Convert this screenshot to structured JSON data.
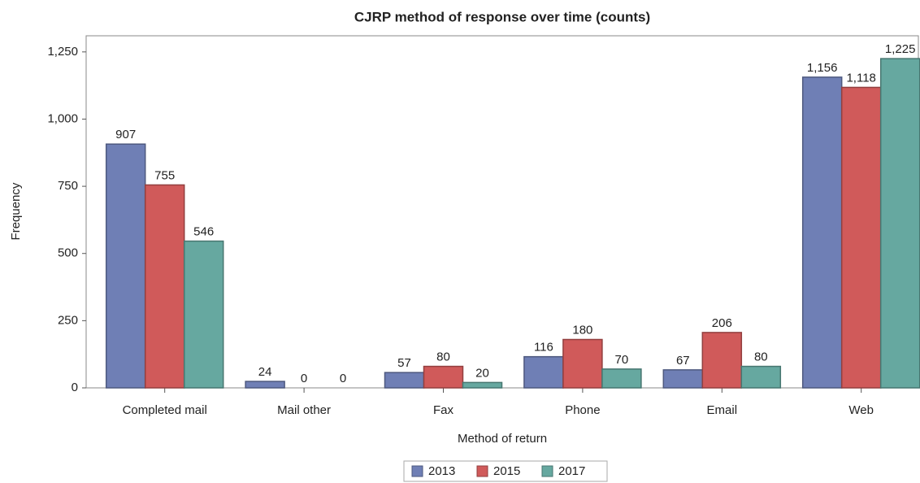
{
  "chart_data": {
    "type": "bar",
    "title": "CJRP method of response over time (counts)",
    "x_label": "Method of return",
    "y_label": "Frequency",
    "categories": [
      "Completed mail",
      "Mail other",
      "Fax",
      "Phone",
      "Email",
      "Web"
    ],
    "series": [
      {
        "name": "2013",
        "color": "#6f7fb5",
        "values": [
          907,
          24,
          57,
          116,
          67,
          1156
        ],
        "value_labels": [
          "907",
          "24",
          "57",
          "116",
          "67",
          "1,156"
        ]
      },
      {
        "name": "2015",
        "color": "#d05a5a",
        "values": [
          755,
          0,
          80,
          180,
          206,
          1118
        ],
        "value_labels": [
          "755",
          "0",
          "80",
          "180",
          "206",
          "1,118"
        ]
      },
      {
        "name": "2017",
        "color": "#66a8a0",
        "values": [
          546,
          0,
          20,
          70,
          80,
          1225
        ],
        "value_labels": [
          "546",
          "0",
          "20",
          "70",
          "80",
          "1,225"
        ]
      }
    ],
    "ylim": [
      0,
      1310
    ],
    "yticks": [
      0,
      250,
      500,
      750,
      {
        "value": 1000,
        "label": "1,000"
      },
      {
        "value": 1250,
        "label": "1,250"
      }
    ],
    "grid": false,
    "legend": "bottom"
  }
}
